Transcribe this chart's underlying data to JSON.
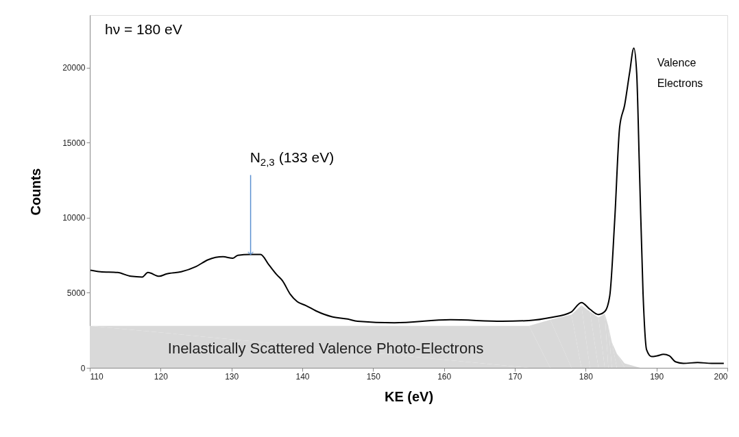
{
  "chart_data": {
    "type": "line",
    "xlabel": "KE (eV)",
    "ylabel": "Counts",
    "xlim": [
      110,
      200
    ],
    "xticks": [
      110,
      120,
      130,
      140,
      150,
      160,
      170,
      180,
      190,
      200
    ],
    "ylim": [
      0,
      23500
    ],
    "yticks": [
      0,
      5000,
      10000,
      15000,
      20000
    ],
    "series": [
      {
        "type": "area",
        "color": "#d9d9d9",
        "x": [
          110,
          172,
          175,
          178,
          179.4,
          180.6,
          181.8,
          182.7,
          183.2,
          183.7,
          184.4,
          185.5,
          187.7
        ],
        "values": [
          2800,
          2800,
          3200,
          3550,
          4150,
          3750,
          3350,
          3600,
          2800,
          1700,
          950,
          300,
          0
        ]
      },
      {
        "color": "#000000",
        "x": [
          110.1,
          111.5,
          113.9,
          115.8,
          117.4,
          118.2,
          119.8,
          120.8,
          122.9,
          125.0,
          126.7,
          128.8,
          130.2,
          130.9,
          132.6,
          134.1,
          135.3,
          136.4,
          137.2,
          138.3,
          139.3,
          140.5,
          141.9,
          144.2,
          146.4,
          147.8,
          153.0,
          160.9,
          168.2,
          172.0,
          175.1,
          177.9,
          179.4,
          180.6,
          181.8,
          182.7,
          183.4,
          184.1,
          184.8,
          185.5,
          186.2,
          186.8,
          187.2,
          187.6,
          188.1,
          188.6,
          189.3,
          190.1,
          191.0,
          191.8,
          192.7,
          193.8,
          195.8,
          197.8,
          199.5
        ],
        "values": [
          6500,
          6400,
          6350,
          6100,
          6050,
          6350,
          6100,
          6250,
          6400,
          6750,
          7200,
          7400,
          7300,
          7500,
          7550,
          7550,
          6850,
          6200,
          5800,
          4900,
          4400,
          4150,
          3800,
          3400,
          3250,
          3100,
          3000,
          3200,
          3100,
          3150,
          3350,
          3700,
          4350,
          3900,
          3550,
          3750,
          4800,
          9850,
          16050,
          17500,
          19650,
          21300,
          19650,
          13100,
          4950,
          1200,
          750,
          800,
          900,
          800,
          400,
          300,
          350,
          300,
          300
        ]
      }
    ],
    "annotations": [
      "hν = 180 eV",
      {
        "text": "N$_{2,3}$ (133 eV)",
        "x": 132.7,
        "y": 7550
      },
      {
        "text": "Valence\nElectrons",
        "x": 187.0,
        "y": 21300
      },
      "Inelastically Scattered Valence Photo-Electrons"
    ]
  }
}
